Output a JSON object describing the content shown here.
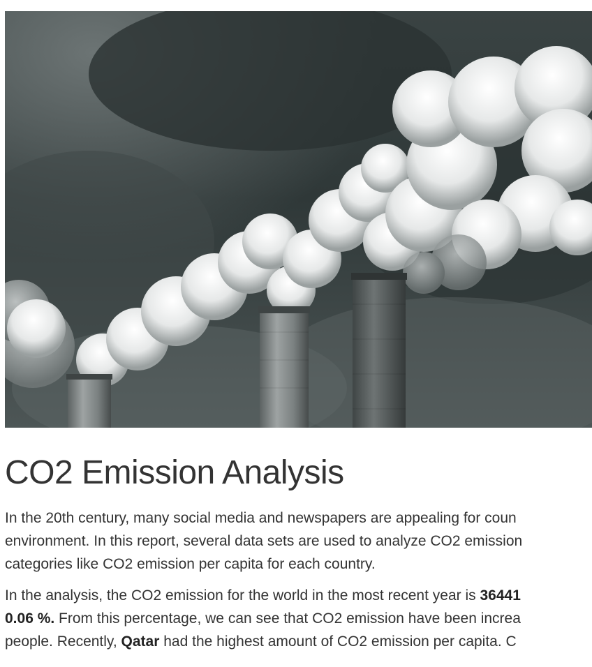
{
  "hero": {
    "image": "factory-smokestacks-smoke-photo"
  },
  "article": {
    "title": "CO2 Emission Analysis",
    "intro_lines": [
      "In the 20th century, many social media and newspapers are appealing for coun",
      "environment. In this report, several data sets are used to analyze CO2 emission",
      "categories like CO2 emission per capita for each country."
    ],
    "p2_line1_pre": "In the analysis, the CO2 emission for the world in the most recent year is ",
    "p2_line1_bold": "36441",
    "p2_line2_bold": "0.06 %.",
    "p2_line2_rest": " From this percentage, we can see that CO2 emission have been increa",
    "p2_line3_pre": "people. Recently, ",
    "p2_line3_bold": "Qatar",
    "p2_line3_rest": " had the highest amount of CO2 emission per capita. C"
  }
}
